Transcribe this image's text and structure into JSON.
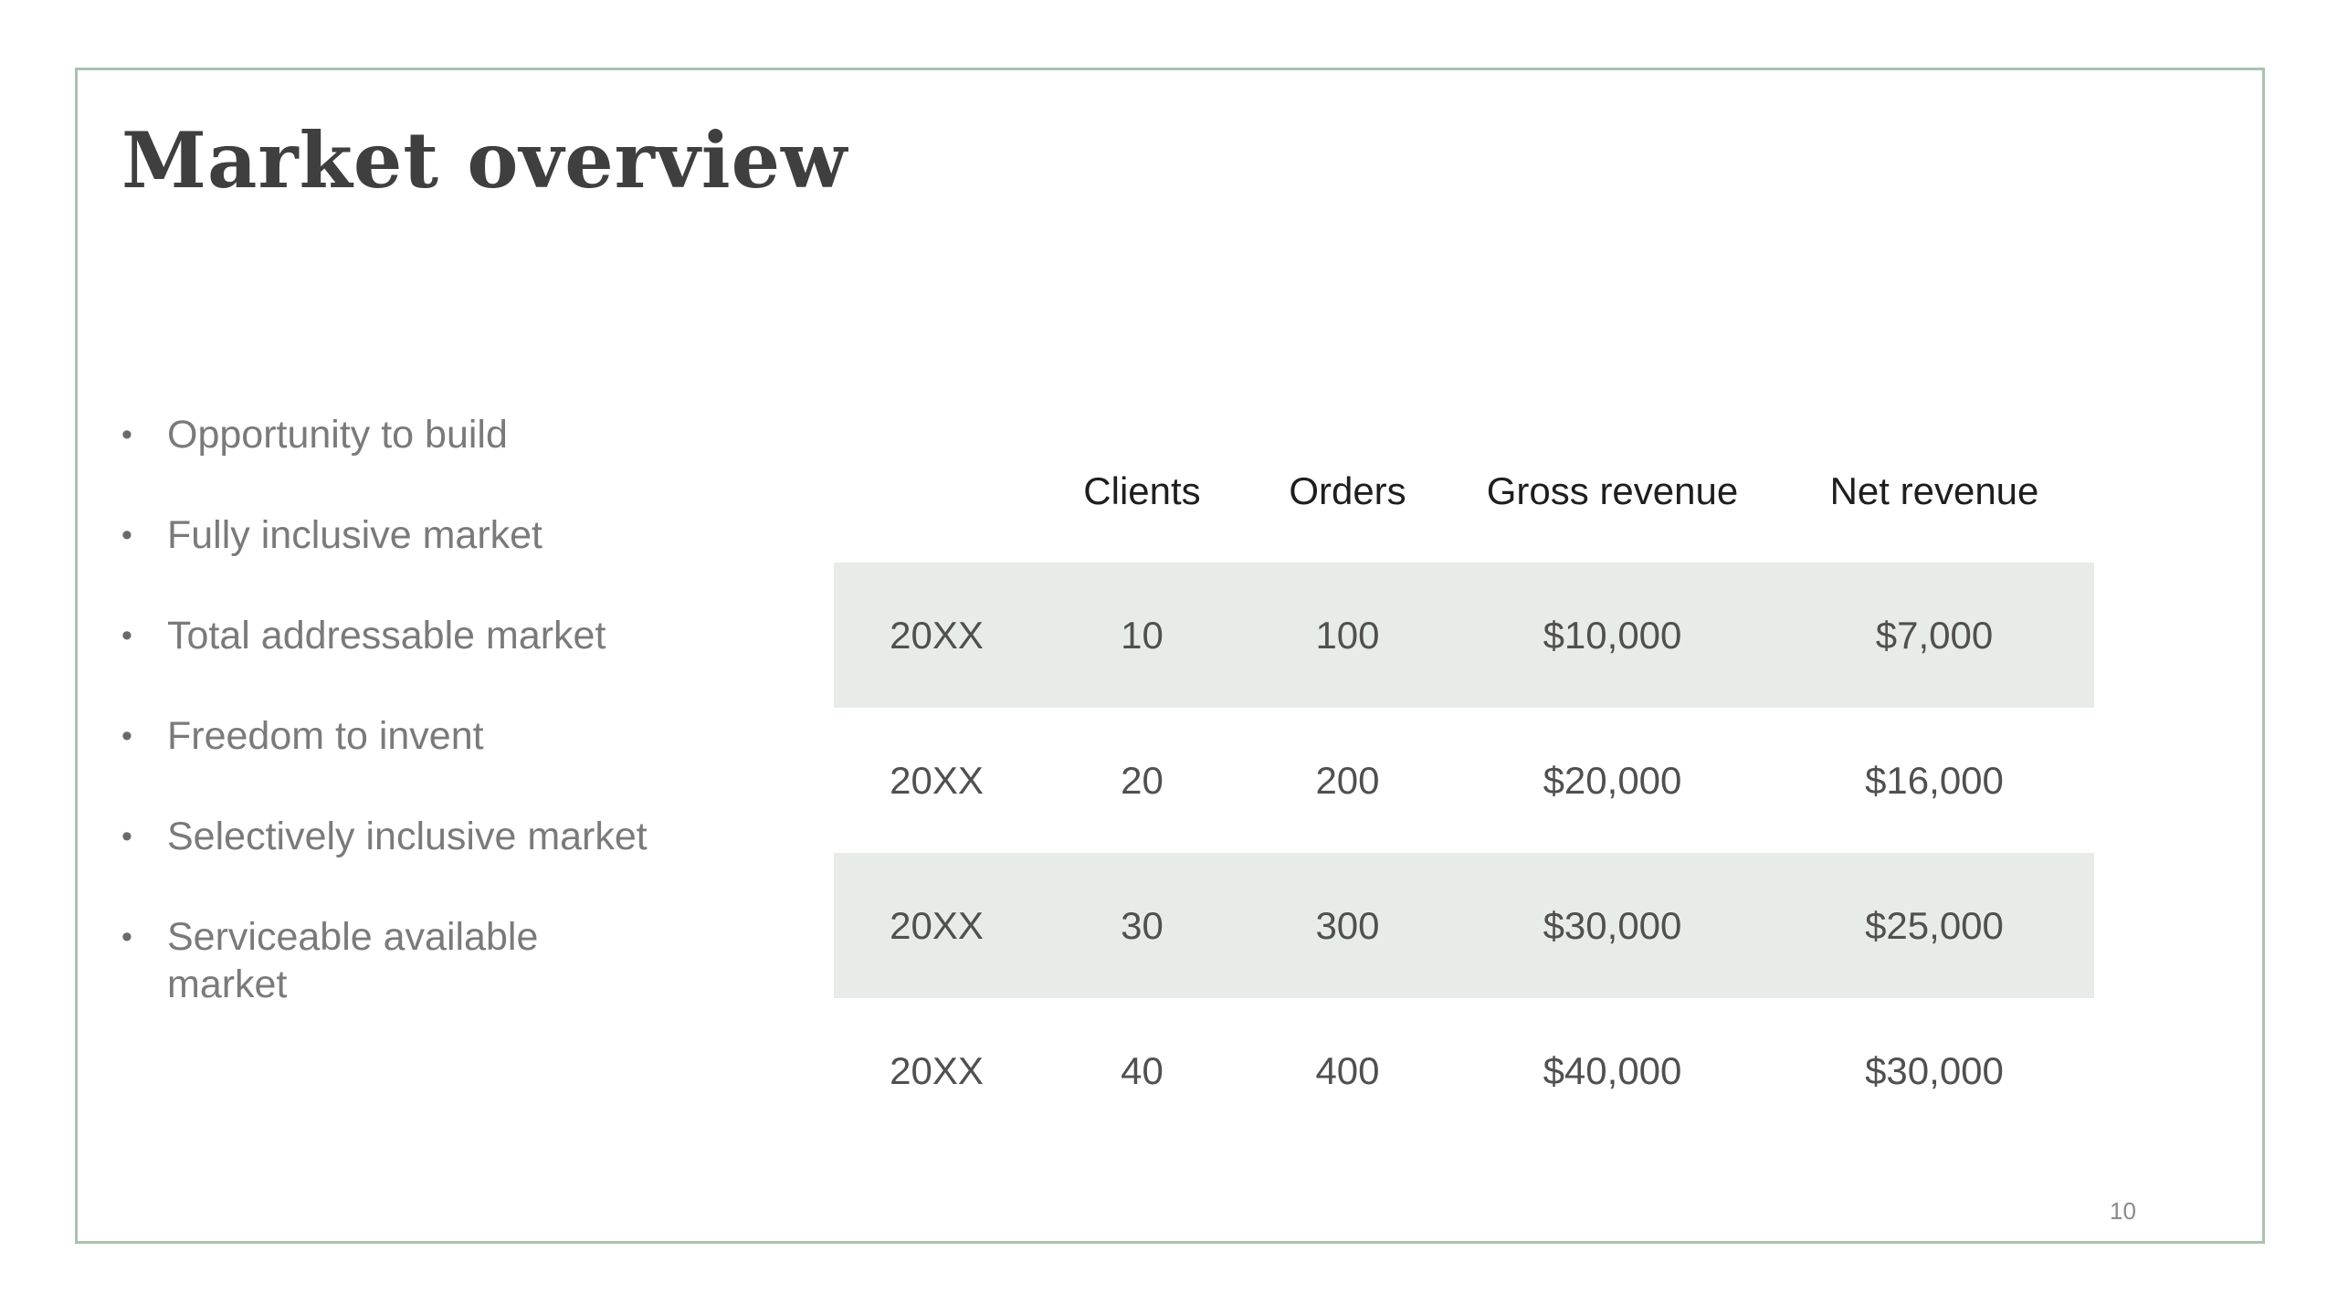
{
  "slide": {
    "title": "Market overview",
    "page_number": "10",
    "bullets": [
      "Opportunity to build",
      "Fully inclusive market",
      "Total addressable market",
      "Freedom to invent",
      "Selectively inclusive market",
      "Serviceable available market"
    ],
    "bullet_glyph": "•"
  },
  "table": {
    "headers": [
      "",
      "Clients",
      "Orders",
      "Gross revenue",
      "Net revenue"
    ],
    "rows": [
      [
        "20XX",
        "10",
        "100",
        "$10,000",
        "$7,000"
      ],
      [
        "20XX",
        "20",
        "200",
        "$20,000",
        "$16,000"
      ],
      [
        "20XX",
        "30",
        "300",
        "$30,000",
        "$25,000"
      ],
      [
        "20XX",
        "40",
        "400",
        "$40,000",
        "$30,000"
      ]
    ],
    "shaded_rows": [
      0,
      2
    ]
  },
  "colors": {
    "frame_border": "#a9c3ae",
    "row_shade": "#e8ece8",
    "title": "#3f3f3f",
    "bullet_text": "#7a7a7a"
  }
}
